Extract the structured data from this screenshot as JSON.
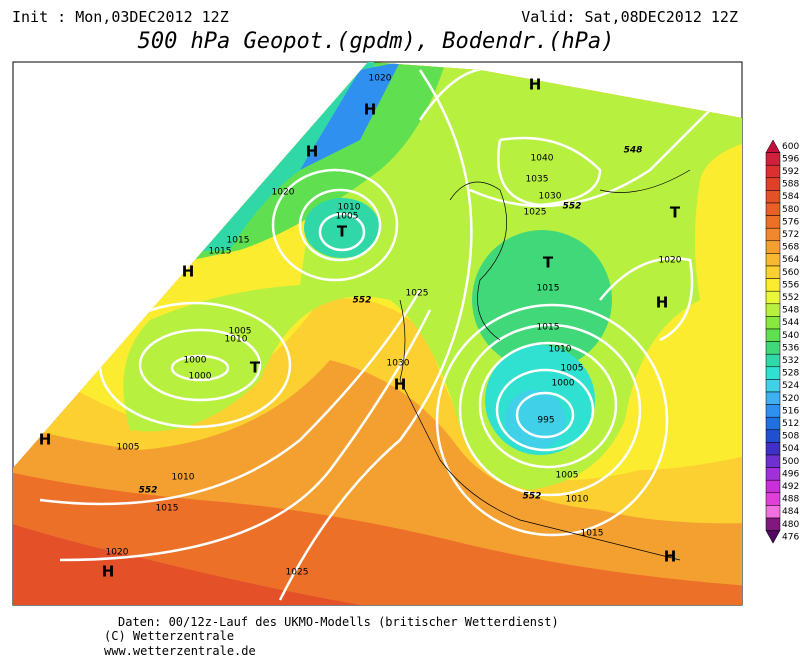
{
  "header": {
    "init": "Init : Mon,03DEC2012 12Z",
    "valid": "Valid: Sat,08DEC2012 12Z",
    "title": "500 hPa Geopot.(gpdm), Bodendr.(hPa)"
  },
  "colorbar": {
    "ticks": [
      600,
      596,
      592,
      588,
      584,
      580,
      576,
      572,
      568,
      564,
      560,
      556,
      552,
      548,
      544,
      540,
      536,
      532,
      528,
      524,
      520,
      516,
      512,
      508,
      504,
      500,
      496,
      492,
      488,
      484,
      480,
      476
    ],
    "colors": [
      "#c0103a",
      "#d0203c",
      "#dc3030",
      "#e04028",
      "#e45028",
      "#e86028",
      "#ec7028",
      "#f08830",
      "#f4a030",
      "#f8b830",
      "#fcd030",
      "#fcec30",
      "#e8f838",
      "#b8f040",
      "#88e840",
      "#60e050",
      "#40d878",
      "#30d8a8",
      "#30e0d0",
      "#40d0e8",
      "#40b0f0",
      "#3090f0",
      "#2070e0",
      "#2050d0",
      "#4030c8",
      "#7030d0",
      "#a030d8",
      "#c830d8",
      "#e040d8",
      "#f070e0",
      "#801880",
      "#500860"
    ]
  },
  "isobar_labels": [
    1020,
    1020,
    1010,
    1005,
    1015,
    1015,
    1040,
    1035,
    1030,
    1025,
    1025,
    1020,
    1015,
    1015,
    1010,
    1005,
    1000,
    1000,
    1030,
    1010,
    1005,
    1000,
    995,
    1005,
    1010,
    1015,
    1005,
    1010,
    1015,
    1020,
    1025
  ],
  "height_labels": [
    552,
    552,
    552,
    552,
    548
  ],
  "centers": [
    "H",
    "H",
    "H",
    "T",
    "H",
    "T",
    "T",
    "H",
    "T",
    "H",
    "H",
    "H",
    "H"
  ],
  "footer": {
    "line1": "Daten: 00/12z-Lauf des UKMO-Modells (britischer Wetterdienst)",
    "line2": "(C) Wetterzentrale",
    "line3": "www.wetterzentrale.de"
  }
}
